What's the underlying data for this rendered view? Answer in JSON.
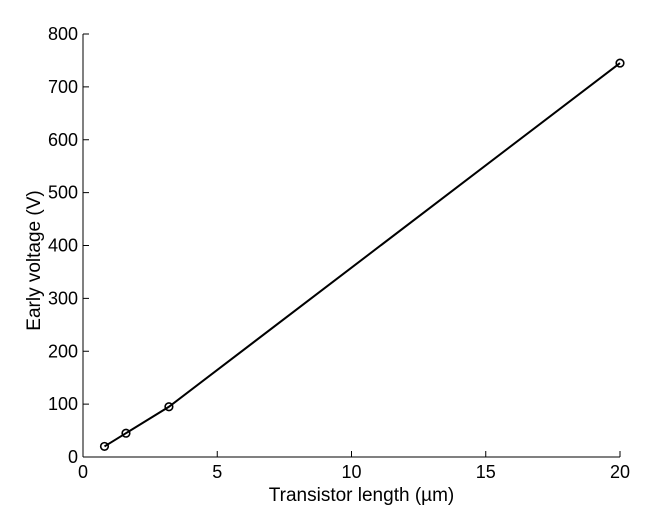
{
  "chart_data": {
    "type": "line",
    "title": "",
    "xlabel": "Transistor length (µm)",
    "ylabel": "Early voltage (V)",
    "xlim": [
      0,
      20
    ],
    "ylim": [
      0,
      800
    ],
    "xticks": [
      0,
      5,
      10,
      15,
      20
    ],
    "yticks": [
      0,
      100,
      200,
      300,
      400,
      500,
      600,
      700,
      800
    ],
    "grid": false,
    "series": [
      {
        "x": [
          0.8,
          1.6,
          3.2,
          20
        ],
        "y": [
          20,
          45,
          95,
          745
        ],
        "marker": "circle",
        "color": "#000000"
      }
    ]
  }
}
